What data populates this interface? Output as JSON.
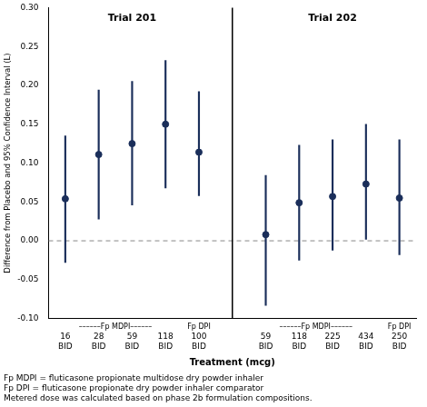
{
  "chart_data": {
    "type": "errorbar",
    "xlabel": "Treatment (mcg)",
    "ylabel": "Difference from Placebo and 95% Confidence Interval (L)",
    "color": "#1a2e5a",
    "ylim": [
      -0.1,
      0.3
    ],
    "yticks": [
      {
        "value": -0.1,
        "label": "-0.10"
      },
      -0.05,
      {
        "value": 0,
        "label": "0.00"
      },
      0.05,
      {
        "value": 0.1,
        "label": "0.10"
      },
      0.15,
      {
        "value": 0.2,
        "label": "0.20"
      },
      0.25,
      {
        "value": 0.3,
        "label": "0.30"
      }
    ],
    "hline": 0,
    "grid": false,
    "groups": [
      {
        "label": "Trial 201",
        "categories": [
          "16",
          "28",
          "59",
          "118",
          "100"
        ],
        "sublabels": [
          "BID",
          "BID",
          "BID",
          "BID",
          "BID"
        ],
        "subgroups": [
          "––––––Fp MDPI––––––",
          "––––––Fp MDPI––––––",
          "––––––Fp MDPI––––––",
          "––––––Fp MDPI––––––",
          "Fp DPI"
        ],
        "values": [
          0.054,
          0.111,
          0.125,
          0.15,
          0.114
        ],
        "ci_low": [
          -0.028,
          0.028,
          0.046,
          0.068,
          0.058
        ],
        "ci_high": [
          0.135,
          0.194,
          0.205,
          0.232,
          0.192
        ]
      },
      {
        "label": "Trial 202",
        "categories": [
          "59",
          "118",
          "225",
          "434",
          "250"
        ],
        "sublabels": [
          "BID",
          "BID",
          "BID",
          "BID",
          "BID"
        ],
        "subgroups": [
          "––––––Fp MDPI––––––",
          "––––––Fp MDPI––––––",
          "––––––Fp MDPI––––––",
          "––––––Fp MDPI––––––",
          "Fp DPI"
        ],
        "values": [
          0.008,
          0.049,
          0.057,
          0.073,
          0.055
        ],
        "ci_low": [
          -0.083,
          -0.025,
          -0.012,
          0.002,
          -0.018
        ],
        "ci_high": [
          0.084,
          0.123,
          0.13,
          0.15,
          0.13
        ]
      }
    ],
    "footnotes": [
      "Fp MDPI = fluticasone propionate multidose dry powder inhaler",
      "Fp DPI = fluticasone propionate dry powder inhaler comparator",
      "Metered dose was calculated based on phase 2b formulation compositions."
    ]
  }
}
